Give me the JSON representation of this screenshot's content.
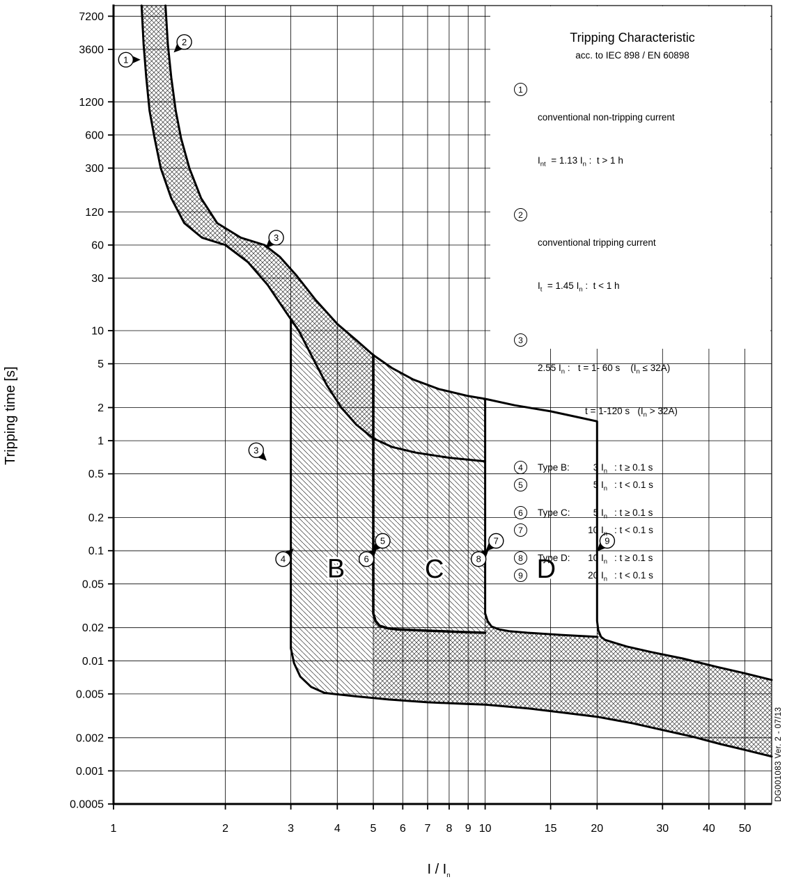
{
  "chart_data": {
    "type": "line",
    "title": "Tripping Characteristic",
    "subtitle": "acc. to IEC 898 / EN 60898",
    "xlabel": "I / I~n~",
    "ylabel": "Tripping time [s]",
    "x_scale": "log",
    "y_scale": "log",
    "grid": true,
    "xlim": [
      1,
      59
    ],
    "ylim": [
      0.0005,
      9000
    ],
    "x_ticks": [
      1,
      2,
      3,
      4,
      5,
      6,
      7,
      8,
      9,
      10,
      15,
      20,
      30,
      40,
      50
    ],
    "y_ticks": [
      7200,
      3600,
      1200,
      600,
      300,
      120,
      60,
      30,
      10,
      5,
      2,
      1,
      0.5,
      0.2,
      0.1,
      0.05,
      0.02,
      0.01,
      0.005,
      0.002,
      0.001,
      0.0005
    ],
    "series": [
      {
        "name": "thermal-upper-limit",
        "points": [
          [
            1.38,
            9000
          ],
          [
            1.4,
            4000
          ],
          [
            1.43,
            2000
          ],
          [
            1.47,
            1000
          ],
          [
            1.52,
            560
          ],
          [
            1.6,
            300
          ],
          [
            1.72,
            160
          ],
          [
            1.9,
            95
          ],
          [
            2.2,
            70
          ],
          [
            2.55,
            60
          ],
          [
            2.8,
            47
          ],
          [
            3.1,
            32
          ],
          [
            3.5,
            19
          ],
          [
            4,
            11.5
          ],
          [
            4.5,
            8.2
          ],
          [
            5,
            6
          ],
          [
            5.6,
            4.6
          ],
          [
            6.4,
            3.6
          ],
          [
            7.5,
            2.95
          ],
          [
            9,
            2.55
          ],
          [
            10,
            2.4
          ],
          [
            12,
            2.1
          ],
          [
            15,
            1.85
          ],
          [
            18,
            1.62
          ],
          [
            20,
            1.5
          ],
          [
            20,
            0.023
          ],
          [
            20.15,
            0.019
          ],
          [
            20.5,
            0.0165
          ],
          [
            21,
            0.0155
          ],
          [
            24,
            0.0135
          ],
          [
            28,
            0.012
          ],
          [
            34,
            0.0105
          ],
          [
            42,
            0.0088
          ],
          [
            50,
            0.0077
          ],
          [
            59,
            0.0067
          ]
        ]
      },
      {
        "name": "thermal-lower-limit",
        "points": [
          [
            1.19,
            9000
          ],
          [
            1.205,
            4000
          ],
          [
            1.225,
            2000
          ],
          [
            1.25,
            1000
          ],
          [
            1.29,
            560
          ],
          [
            1.34,
            300
          ],
          [
            1.43,
            160
          ],
          [
            1.55,
            95
          ],
          [
            1.73,
            70
          ],
          [
            2,
            60
          ],
          [
            2.3,
            42
          ],
          [
            2.6,
            26
          ],
          [
            2.9,
            15
          ],
          [
            3.15,
            10
          ],
          [
            3.45,
            5.5
          ],
          [
            3.75,
            3.2
          ],
          [
            4.1,
            2
          ],
          [
            4.5,
            1.4
          ],
          [
            5,
            1.05
          ],
          [
            5.6,
            0.88
          ],
          [
            6.5,
            0.78
          ],
          [
            8,
            0.7
          ],
          [
            10,
            0.65
          ]
        ]
      },
      {
        "name": "boundary-3In",
        "points": [
          [
            3,
            12.5
          ],
          [
            3,
            0.013
          ],
          [
            3.06,
            0.0095
          ],
          [
            3.18,
            0.0072
          ],
          [
            3.4,
            0.0058
          ],
          [
            3.7,
            0.0051
          ],
          [
            4.5,
            0.00475
          ],
          [
            5.5,
            0.00445
          ],
          [
            7,
            0.0042
          ],
          [
            9,
            0.00405
          ],
          [
            10,
            0.004
          ],
          [
            13,
            0.0037
          ],
          [
            16,
            0.0034
          ],
          [
            20,
            0.0031
          ],
          [
            25,
            0.0027
          ],
          [
            30,
            0.00235
          ],
          [
            36,
            0.00205
          ],
          [
            43,
            0.00175
          ],
          [
            50,
            0.00155
          ],
          [
            59,
            0.00135
          ]
        ]
      },
      {
        "name": "boundary-5In",
        "points": [
          [
            5,
            6
          ],
          [
            5,
            0.027
          ],
          [
            5.07,
            0.023
          ],
          [
            5.2,
            0.0208
          ],
          [
            5.45,
            0.0198
          ],
          [
            5.8,
            0.0193
          ],
          [
            7,
            0.0188
          ],
          [
            8.5,
            0.0183
          ],
          [
            10,
            0.018
          ]
        ]
      },
      {
        "name": "boundary-10In",
        "points": [
          [
            10,
            2.4
          ],
          [
            10,
            0.027
          ],
          [
            10.15,
            0.023
          ],
          [
            10.4,
            0.0205
          ],
          [
            10.9,
            0.0193
          ],
          [
            11.6,
            0.0186
          ],
          [
            13,
            0.018
          ],
          [
            16,
            0.0172
          ],
          [
            20,
            0.0165
          ]
        ]
      }
    ],
    "regions": [
      {
        "name": "thermal-band",
        "hatch": "cross",
        "points": [
          [
            1.38,
            9000
          ],
          [
            1.4,
            4000
          ],
          [
            1.43,
            2000
          ],
          [
            1.47,
            1000
          ],
          [
            1.52,
            560
          ],
          [
            1.6,
            300
          ],
          [
            1.72,
            160
          ],
          [
            1.9,
            95
          ],
          [
            2.2,
            70
          ],
          [
            2.55,
            60
          ],
          [
            2.8,
            47
          ],
          [
            3.1,
            32
          ],
          [
            3.5,
            19
          ],
          [
            4,
            11.5
          ],
          [
            4.5,
            8.2
          ],
          [
            5,
            6
          ],
          [
            5,
            1.05
          ],
          [
            4.5,
            1.4
          ],
          [
            4.1,
            2
          ],
          [
            3.75,
            3.2
          ],
          [
            3.45,
            5.5
          ],
          [
            3.15,
            10
          ],
          [
            2.9,
            15
          ],
          [
            2.6,
            26
          ],
          [
            2.3,
            42
          ],
          [
            2,
            60
          ],
          [
            1.73,
            70
          ],
          [
            1.55,
            95
          ],
          [
            1.43,
            160
          ],
          [
            1.34,
            300
          ],
          [
            1.29,
            560
          ],
          [
            1.25,
            1000
          ],
          [
            1.225,
            2000
          ],
          [
            1.205,
            4000
          ],
          [
            1.19,
            9000
          ]
        ]
      },
      {
        "name": "type-b-band",
        "hatch": "diag",
        "points": [
          [
            3,
            12.5
          ],
          [
            3,
            0.013
          ],
          [
            3.06,
            0.0095
          ],
          [
            3.18,
            0.0072
          ],
          [
            3.4,
            0.0058
          ],
          [
            3.7,
            0.0051
          ],
          [
            4.5,
            0.00475
          ],
          [
            5,
            0.0046
          ],
          [
            5,
            1.05
          ],
          [
            4.5,
            1.4
          ],
          [
            4.1,
            2
          ],
          [
            3.75,
            3.2
          ],
          [
            3.45,
            5.5
          ],
          [
            3.15,
            10
          ]
        ]
      },
      {
        "name": "type-c-band",
        "hatch": "diag",
        "points": [
          [
            5,
            6
          ],
          [
            5.6,
            4.6
          ],
          [
            6.4,
            3.6
          ],
          [
            7.5,
            2.95
          ],
          [
            9,
            2.55
          ],
          [
            10,
            2.4
          ],
          [
            10,
            0.018
          ],
          [
            8.5,
            0.0183
          ],
          [
            7,
            0.0188
          ],
          [
            5.8,
            0.0193
          ],
          [
            5.45,
            0.0198
          ],
          [
            5.2,
            0.0208
          ],
          [
            5.07,
            0.023
          ],
          [
            5,
            0.027
          ]
        ]
      },
      {
        "name": "instantaneous-band",
        "hatch": "cross",
        "points": [
          [
            5,
            0.027
          ],
          [
            5.07,
            0.023
          ],
          [
            5.2,
            0.0208
          ],
          [
            5.45,
            0.0198
          ],
          [
            5.8,
            0.0193
          ],
          [
            7,
            0.0188
          ],
          [
            8.5,
            0.0183
          ],
          [
            10,
            0.018
          ],
          [
            10,
            0.027
          ],
          [
            10.15,
            0.023
          ],
          [
            10.4,
            0.0205
          ],
          [
            10.9,
            0.0193
          ],
          [
            11.6,
            0.0186
          ],
          [
            13,
            0.018
          ],
          [
            16,
            0.0172
          ],
          [
            20,
            0.0165
          ],
          [
            20,
            0.023
          ],
          [
            20.15,
            0.019
          ],
          [
            20.5,
            0.0165
          ],
          [
            21,
            0.0155
          ],
          [
            24,
            0.0135
          ],
          [
            28,
            0.012
          ],
          [
            34,
            0.0105
          ],
          [
            42,
            0.0088
          ],
          [
            50,
            0.0077
          ],
          [
            59,
            0.0067
          ],
          [
            59,
            0.00135
          ],
          [
            50,
            0.00155
          ],
          [
            43,
            0.00175
          ],
          [
            36,
            0.00205
          ],
          [
            30,
            0.00235
          ],
          [
            25,
            0.0027
          ],
          [
            20,
            0.0031
          ],
          [
            16,
            0.0034
          ],
          [
            13,
            0.0037
          ],
          [
            10,
            0.004
          ],
          [
            9,
            0.00405
          ],
          [
            7,
            0.0042
          ],
          [
            5.5,
            0.00445
          ],
          [
            5,
            0.0046
          ]
        ]
      }
    ],
    "region_labels": [
      {
        "text": "B",
        "x": 3.97,
        "t": 0.069
      },
      {
        "text": "C",
        "x": 7.3,
        "t": 0.0685
      },
      {
        "text": "D",
        "x": 14.6,
        "t": 0.0685
      }
    ],
    "markers": [
      {
        "n": "1",
        "x": 1.08,
        "t": 2900,
        "dir": "e"
      },
      {
        "n": "2",
        "x": 1.55,
        "t": 4200,
        "dir": "sw"
      },
      {
        "n": "3",
        "x": 2.74,
        "t": 70,
        "dir": "sw"
      },
      {
        "n": "3",
        "x": 2.42,
        "t": 0.82,
        "dir": "se"
      },
      {
        "n": "4",
        "x": 2.86,
        "t": 0.084,
        "dir": "ne"
      },
      {
        "n": "5",
        "x": 5.3,
        "t": 0.123,
        "dir": "sw"
      },
      {
        "n": "6",
        "x": 4.79,
        "t": 0.084,
        "dir": "ne"
      },
      {
        "n": "7",
        "x": 10.7,
        "t": 0.123,
        "dir": "sw"
      },
      {
        "n": "8",
        "x": 9.6,
        "t": 0.084,
        "dir": "ne"
      },
      {
        "n": "9",
        "x": 21.3,
        "t": 0.123,
        "dir": "sw"
      }
    ]
  },
  "legend": {
    "title": "Tripping Characteristic",
    "subtitle": "acc. to IEC 898 / EN 60898",
    "items": [
      {
        "num": "1",
        "line1": "conventional non-tripping current",
        "line2": "I~nt~  = 1.13 I~n~ :  t > 1 h"
      },
      {
        "num": "2",
        "line1": "conventional tripping current",
        "line2": "I~t~  = 1.45 I~n~ :  t < 1 h"
      },
      {
        "num": "3",
        "line1": "2.55 I~n~ :   t = 1- 60 s    (I~n~ ≤ 32A)",
        "line2": "t = 1-120 s   (I~n~ > 32A)"
      },
      {
        "num": "4",
        "type": "Type B:",
        "current": "3 I~n~",
        "cond": ": t ≥ 0.1 s"
      },
      {
        "num": "5",
        "type": "",
        "current": "5 I~n~",
        "cond": ": t < 0.1 s"
      },
      {
        "num": "6",
        "type": "Type C:",
        "current": "5 I~n~",
        "cond": ": t ≥ 0.1 s"
      },
      {
        "num": "7",
        "type": "",
        "current": "10 I~n~",
        "cond": ": t < 0.1 s"
      },
      {
        "num": "8",
        "type": "Type D:",
        "current": "10 I~n~",
        "cond": ": t ≥ 0.1 s"
      },
      {
        "num": "9",
        "type": "",
        "current": "20 I~n~",
        "cond": ": t < 0.1 s"
      }
    ]
  },
  "axis": {
    "y_title": "Tripping time [s]",
    "x_title": "I / I~n~"
  },
  "side_note": "DG001083 Ver. 2 - 07/13"
}
